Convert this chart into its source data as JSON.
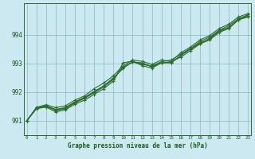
{
  "title": "Graphe pression niveau de la mer (hPa)",
  "background_color": "#cce8f0",
  "plot_bg_color": "#cce8f0",
  "grid_color": "#88bbbb",
  "line_color": "#2d6e2d",
  "marker_color": "#2d6e2d",
  "xlim": [
    -0.3,
    23.3
  ],
  "ylim": [
    990.5,
    995.1
  ],
  "yticks": [
    991,
    992,
    993,
    994
  ],
  "xticks": [
    0,
    1,
    2,
    3,
    4,
    5,
    6,
    7,
    8,
    9,
    10,
    11,
    12,
    13,
    14,
    15,
    16,
    17,
    18,
    19,
    20,
    21,
    22,
    23
  ],
  "series": [
    [
      991.0,
      991.42,
      991.48,
      991.31,
      991.38,
      991.58,
      991.72,
      991.92,
      992.12,
      992.38,
      993.02,
      993.08,
      992.92,
      992.84,
      993.02,
      993.02,
      993.28,
      993.52,
      993.68,
      993.82,
      994.08,
      994.22,
      994.52,
      994.62
    ],
    [
      991.0,
      991.44,
      991.52,
      991.36,
      991.42,
      991.62,
      991.78,
      991.98,
      992.18,
      992.44,
      992.88,
      993.05,
      993.02,
      992.88,
      993.02,
      993.06,
      993.22,
      993.44,
      993.68,
      993.88,
      994.12,
      994.24,
      994.52,
      994.66
    ],
    [
      991.0,
      991.46,
      991.52,
      991.4,
      991.46,
      991.66,
      991.82,
      992.02,
      992.22,
      992.5,
      992.82,
      993.08,
      992.96,
      992.92,
      993.06,
      993.12,
      993.32,
      993.52,
      993.76,
      993.92,
      994.16,
      994.32,
      994.56,
      994.7
    ],
    [
      991.0,
      991.47,
      991.56,
      991.46,
      991.52,
      991.72,
      991.87,
      992.12,
      992.32,
      992.57,
      992.92,
      993.12,
      993.07,
      992.97,
      993.12,
      993.07,
      993.37,
      993.57,
      993.82,
      993.97,
      994.22,
      994.37,
      994.62,
      994.74
    ],
    [
      991.0,
      991.43,
      991.5,
      991.38,
      991.44,
      991.64,
      991.8,
      992.01,
      992.22,
      992.46,
      992.86,
      993.04,
      992.99,
      992.89,
      993.04,
      993.03,
      993.27,
      993.49,
      993.72,
      993.84,
      994.14,
      994.26,
      994.54,
      994.67
    ]
  ]
}
